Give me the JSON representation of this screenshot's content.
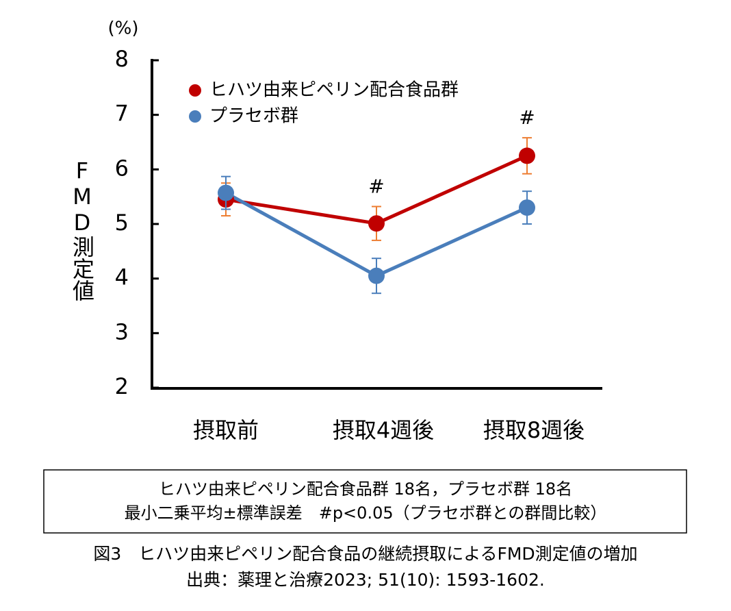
{
  "chart_data": {
    "type": "line",
    "unit_label": "(%)",
    "y_label": "FMD測定値",
    "categories": [
      "摂取前",
      "摂取4週後",
      "摂取8週後"
    ],
    "series": [
      {
        "name": "ヒハツ由来ピペリン配合食品群",
        "color": "#c00000",
        "values": [
          5.45,
          5.01,
          6.25
        ],
        "errors": [
          0.3,
          0.31,
          0.33
        ]
      },
      {
        "name": "プラセボ群",
        "color": "#4a7ebb",
        "values": [
          5.57,
          4.05,
          5.3
        ],
        "errors": [
          0.3,
          0.32,
          0.3
        ]
      }
    ],
    "error_color": "#ed7d31",
    "annotations": [
      "#",
      "#"
    ],
    "ylim": [
      2,
      8
    ],
    "yticks": [
      2,
      3,
      4,
      5,
      6,
      7,
      8
    ]
  },
  "notes": [
    "ヒハツ由来ピペリン配合食品群 18名，プラセボ群 18名",
    "最小二乗平均±標準誤差　#p<0.05（プラセボ群との群間比較）"
  ],
  "caption": "図3　ヒハツ由来ピペリン配合食品の継続摂取によるFMD測定値の増加",
  "source": "出典：薬理と治療2023; 51(10): 1593-1602."
}
